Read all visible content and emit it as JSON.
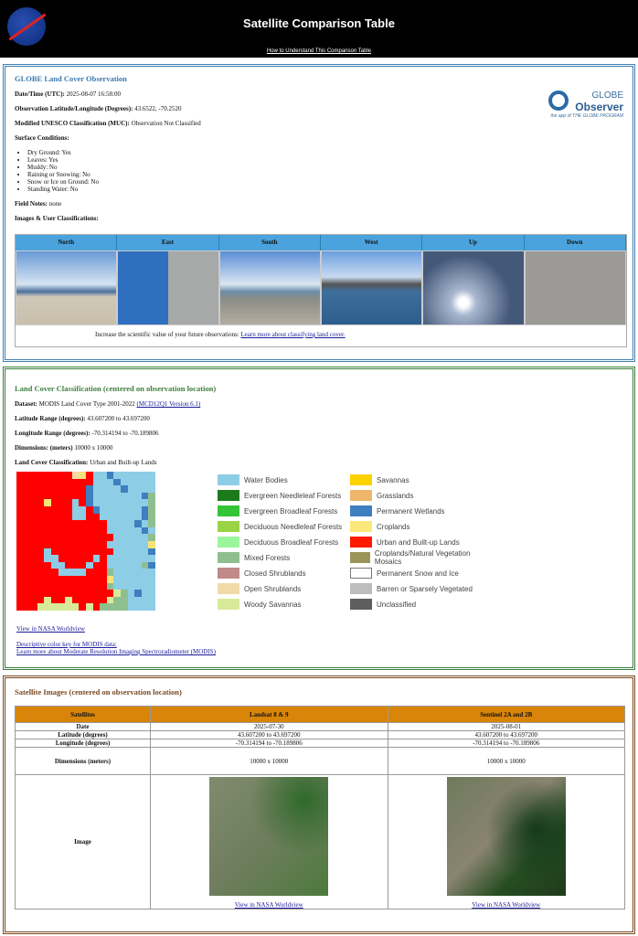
{
  "header": {
    "logo_text": "NASA",
    "title": "Satellite Comparison Table",
    "help_link": "How to Understand This Comparison Table"
  },
  "observation": {
    "title": "GLOBE Land Cover Observation",
    "datetime_label": "Date/Time (UTC):",
    "datetime": "2025-08-07 16:58:00",
    "latlon_label": "Observation Latitude/Longitude (Degrees):",
    "latlon": "43.6522, -70.2520",
    "muc_label": "Modified UNESCO Classification (MUC):",
    "muc": "Observation Not Classified",
    "surface_label": "Surface Conditions:",
    "surface": [
      "Dry Ground: Yes",
      "Leaves: Yes",
      "Muddy: No",
      "Raining or Snowing: No",
      "Snow or Ice on Ground: No",
      "Standing Water: No"
    ],
    "notes_label": "Field Notes:",
    "notes": "none",
    "images_label": "Images & User Classifications:",
    "logo": {
      "line1": "GLOBE",
      "line2": "Observer",
      "line3": "the app of THE GLOBE PROGRAM"
    },
    "directions": [
      "North",
      "East",
      "South",
      "West",
      "Up",
      "Down"
    ],
    "note_text": "Increase the scientific value of your future observations: ",
    "note_link": "Learn more about classifying land cover."
  },
  "landcover": {
    "title": "Land Cover Classification (centered on observation location)",
    "dataset_label": "Dataset:",
    "dataset": "MODIS Land Cover Type 2001-2022 ",
    "dataset_link": "(MCD12Q1 Version 6.1)",
    "lat_label": "Latitude Range (degrees):",
    "lat": "43.607200 to 43.697200",
    "lon_label": "Longitude Range (degrees):",
    "lon": "-70.314194 to -70.189806",
    "dim_label": "Dimensions: (meters)",
    "dim": "10000 x 10000",
    "class_label": "Land Cover Classification:",
    "class": "Urban and Built-up Lands",
    "grid": [
      "RRRRRRRROYRWWPWWWWWW",
      "RRRRRRRRRRRWWWPWWWWW",
      "RRRRRRRRRRPWWWWPWWWW",
      "RRRRRRRRRRPWWWWWWWPM",
      "RRRRYRRRWRPWWWWWWWWM",
      "RRRRRRRRWWRPWWWWWWPM",
      "RRRRRRRRWWRRWWWWWWPM",
      "RRRRRRRRRRRRRWWWWPWM",
      "RRRRRRRRRRRRRWWWWWPW",
      "RRRRRRRRRRRRRRWWWWWM",
      "RRRRRRRRRRRRRWWWWWWY",
      "RRRRWRRRRRRRRRWWWWWP",
      "RRRRWWRRRRRWRWWWWWWW",
      "RRRRRWWRRRWRRWWWWWMP",
      "RRRRRRWWWWRRRMWWWWWW",
      "RRRRRRRRRRRRRYWWWWWW",
      "RRRRRRRRRRRRRMWWWWWW",
      "RRRRRRRRRRRRRRSMWPWW",
      "RRRRSRRSRRRRRSMMWWWW",
      "RRRSSSSSSRSRMMMMWWWW"
    ],
    "grid_colors": {
      "R": "#ff0000",
      "W": "#8ecde6",
      "P": "#3e7fbf",
      "M": "#8fbf8f",
      "Y": "#f5e27a",
      "S": "#d8ea9a",
      "O": "#f2d9a8"
    },
    "legend": [
      {
        "label": "Water Bodies",
        "color": "#8ecde6"
      },
      {
        "label": "Savannas",
        "color": "#fcd200"
      },
      {
        "label": "Evergreen Needleleaf Forests",
        "color": "#1c7a1c"
      },
      {
        "label": "Grasslands",
        "color": "#efb66a"
      },
      {
        "label": "Evergreen Broadleaf Forests",
        "color": "#35c435"
      },
      {
        "label": "Permanent Wetlands",
        "color": "#3e7fbf"
      },
      {
        "label": "Deciduous Needleleaf Forests",
        "color": "#9ad345"
      },
      {
        "label": "Croplands",
        "color": "#fbe87a"
      },
      {
        "label": "Deciduous Broadleaf Forests",
        "color": "#9bf59b"
      },
      {
        "label": "Urban and Built-up Lands",
        "color": "#ff1a00"
      },
      {
        "label": "Mixed Forests",
        "color": "#8fbf8f"
      },
      {
        "label": "Croplands/Natural Vegetation Mosaics",
        "color": "#9b9458"
      },
      {
        "label": "Closed Shrublands",
        "color": "#c08a8a"
      },
      {
        "label": "Permanent Snow and Ice",
        "color": "#ffffff"
      },
      {
        "label": "Open Shrublands",
        "color": "#f2d9a8"
      },
      {
        "label": "Barren or Sparsely Vegetated",
        "color": "#bdbdbd"
      },
      {
        "label": "Woody Savannas",
        "color": "#d8ea9a"
      },
      {
        "label": "Unclassified",
        "color": "#5e5e5e"
      }
    ],
    "worldview_link": "View in NASA Worldview",
    "colorkey_link": "Descriptive color key for MODIS data:",
    "modis_link": "Learn more about Moderate Resolution Imaging Spectroradiometer (MODIS)"
  },
  "satellite": {
    "title": "Satellite Images (centered on observation location)",
    "headers": [
      "Satellites",
      "Landsat 8 & 9",
      "Sentinel 2A and 2B"
    ],
    "rows": [
      [
        "Date",
        "2025-07-30",
        "2025-08-01"
      ],
      [
        "Latitude (degrees)",
        "43.607200 to 43.697200",
        "43.607200 to 43.697200"
      ],
      [
        "Longitude (degrees)",
        "-70.314194 to -70.189806",
        "-70.314194 to -70.189806"
      ],
      [
        "Dimensions (meters)",
        "10000 x 10000",
        "10000 x 10000"
      ]
    ],
    "image_label": "Image",
    "worldview_link": "View in NASA Worldview"
  }
}
